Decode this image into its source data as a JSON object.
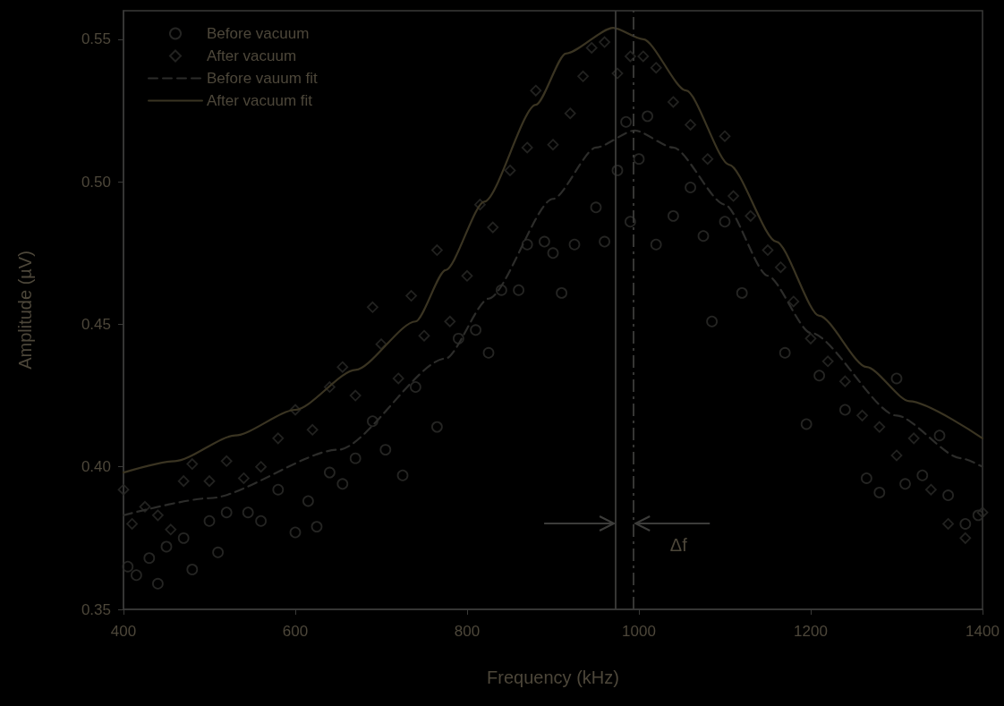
{
  "chart_data": {
    "type": "scatter",
    "xlabel": "Frequency (kHz)",
    "ylabel": "Amplitude (µV)",
    "xlim": [
      400,
      1400
    ],
    "xticks": [
      400,
      600,
      800,
      1000,
      1200,
      1400
    ],
    "ylim": [
      0.35,
      0.56
    ],
    "yticks": [
      0.35,
      {
        "value": 0.4,
        "label": "0.40"
      },
      0.45,
      {
        "value": 0.5,
        "label": "0.50"
      },
      0.55
    ],
    "grid": false,
    "legend": "top left",
    "series": [
      {
        "name": "Before vacuum",
        "marker": "circle",
        "color": "#2e2e2c",
        "x": [
          405,
          415,
          430,
          440,
          450,
          470,
          480,
          500,
          510,
          520,
          545,
          560,
          580,
          600,
          615,
          625,
          640,
          655,
          670,
          690,
          705,
          725,
          740,
          765,
          790,
          810,
          825,
          840,
          860,
          870,
          890,
          900,
          910,
          925,
          950,
          960,
          975,
          985,
          990,
          1000,
          1010,
          1020,
          1040,
          1060,
          1075,
          1085,
          1100,
          1120,
          1170,
          1195,
          1210,
          1240,
          1265,
          1280,
          1300,
          1310,
          1330,
          1350,
          1360,
          1380,
          1395
        ],
        "values": [
          0.365,
          0.362,
          0.368,
          0.359,
          0.372,
          0.375,
          0.364,
          0.381,
          0.37,
          0.384,
          0.384,
          0.381,
          0.392,
          0.377,
          0.388,
          0.379,
          0.398,
          0.394,
          0.403,
          0.416,
          0.406,
          0.397,
          0.428,
          0.414,
          0.445,
          0.448,
          0.44,
          0.462,
          0.462,
          0.478,
          0.479,
          0.475,
          0.461,
          0.478,
          0.491,
          0.479,
          0.504,
          0.521,
          0.486,
          0.508,
          0.523,
          0.478,
          0.488,
          0.498,
          0.481,
          0.451,
          0.486,
          0.461,
          0.44,
          0.415,
          0.432,
          0.42,
          0.396,
          0.391,
          0.431,
          0.394,
          0.397,
          0.411,
          0.39,
          0.38,
          0.383
        ]
      },
      {
        "name": "After vacuum",
        "marker": "diamond",
        "color": "#2a2a28",
        "x": [
          400,
          410,
          425,
          440,
          455,
          470,
          480,
          500,
          520,
          540,
          560,
          580,
          600,
          620,
          640,
          655,
          670,
          690,
          700,
          720,
          735,
          750,
          765,
          780,
          800,
          815,
          830,
          850,
          870,
          880,
          900,
          920,
          935,
          945,
          960,
          975,
          990,
          1005,
          1020,
          1040,
          1060,
          1080,
          1100,
          1110,
          1130,
          1150,
          1165,
          1180,
          1200,
          1220,
          1240,
          1260,
          1280,
          1300,
          1320,
          1340,
          1360,
          1380,
          1400
        ],
        "values": [
          0.392,
          0.38,
          0.386,
          0.383,
          0.378,
          0.395,
          0.401,
          0.395,
          0.402,
          0.396,
          0.4,
          0.41,
          0.42,
          0.413,
          0.428,
          0.435,
          0.425,
          0.456,
          0.443,
          0.431,
          0.46,
          0.446,
          0.476,
          0.451,
          0.467,
          0.492,
          0.484,
          0.504,
          0.512,
          0.532,
          0.513,
          0.524,
          0.537,
          0.547,
          0.549,
          0.538,
          0.544,
          0.544,
          0.54,
          0.528,
          0.52,
          0.508,
          0.516,
          0.495,
          0.488,
          0.476,
          0.47,
          0.458,
          0.445,
          0.437,
          0.43,
          0.418,
          0.414,
          0.404,
          0.41,
          0.392,
          0.38,
          0.375,
          0.384
        ]
      },
      {
        "name": "Before vauum fit",
        "type": "line",
        "marker": "none",
        "line_style": "dashed",
        "color": "#2c2c2a",
        "x": [
          400,
          500,
          650,
          775,
          825,
          900,
          950,
          995,
          1040,
          1100,
          1150,
          1200,
          1300,
          1375,
          1400
        ],
        "values": [
          0.383,
          0.389,
          0.406,
          0.438,
          0.459,
          0.494,
          0.512,
          0.518,
          0.512,
          0.492,
          0.467,
          0.447,
          0.418,
          0.403,
          0.4
        ]
      },
      {
        "name": "After vacuum fit",
        "type": "line",
        "marker": "none",
        "line_style": "solid",
        "color": "#3a3422",
        "x": [
          400,
          460,
          530,
          600,
          670,
          740,
          775,
          820,
          880,
          915,
          970,
          1005,
          1055,
          1105,
          1160,
          1210,
          1265,
          1315,
          1400
        ],
        "values": [
          0.398,
          0.402,
          0.411,
          0.42,
          0.434,
          0.451,
          0.469,
          0.493,
          0.527,
          0.545,
          0.554,
          0.55,
          0.532,
          0.506,
          0.479,
          0.453,
          0.435,
          0.423,
          0.41
        ]
      }
    ],
    "ref_lines": [
      {
        "axis": "x",
        "value": 973,
        "color": "#3c3c3a",
        "line_style": "solid"
      },
      {
        "axis": "x",
        "value": 994,
        "color": "#3c3c3a",
        "line_style": "dashed"
      }
    ],
    "annotations": [
      "Δf"
    ]
  }
}
